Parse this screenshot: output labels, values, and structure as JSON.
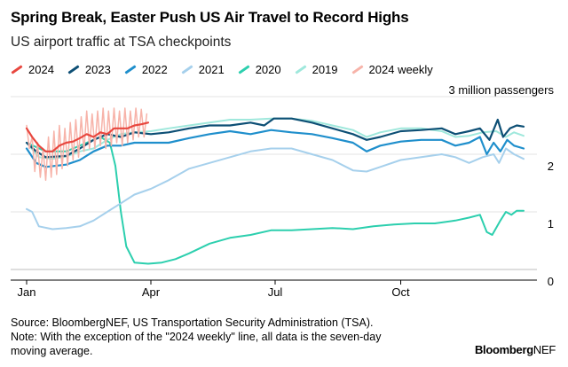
{
  "title": "Spring Break, Easter Push US Air Travel to Record Highs",
  "subtitle": "US airport traffic at TSA checkpoints",
  "source_line": "Source: BloombergNEF, US Transportation Security Administration (TSA).",
  "note_line1": "Note: With the exception of the \"2024 weekly\" line, all data is the seven-day",
  "note_line2": "moving average.",
  "brand_bold": "Bloomberg",
  "brand_light": "NEF",
  "chart_data": {
    "type": "line",
    "title": "Spring Break, Easter Push US Air Travel to Record Highs",
    "subtitle": "US airport traffic at TSA checkpoints",
    "yunit": "million passengers",
    "ylim": [
      0,
      3.1
    ],
    "yticks": [
      {
        "value": 0,
        "label": "0"
      },
      {
        "value": 1,
        "label": "1"
      },
      {
        "value": 2,
        "label": "2"
      },
      {
        "value": 3,
        "label": "3 million passengers"
      }
    ],
    "xlim": [
      1,
      365
    ],
    "xticks": [
      {
        "day": 1,
        "label": "Jan"
      },
      {
        "day": 92,
        "label": "Apr"
      },
      {
        "day": 183,
        "label": "Jul"
      },
      {
        "day": 275,
        "label": "Oct"
      }
    ],
    "grid": true,
    "legend_position": "top",
    "series": [
      {
        "name": "2019",
        "color": "#9fe8dc",
        "width": 2,
        "points": [
          [
            1,
            2.2
          ],
          [
            10,
            1.95
          ],
          [
            20,
            1.92
          ],
          [
            30,
            1.96
          ],
          [
            40,
            2.05
          ],
          [
            50,
            2.1
          ],
          [
            60,
            2.25
          ],
          [
            70,
            2.35
          ],
          [
            80,
            2.38
          ],
          [
            92,
            2.4
          ],
          [
            105,
            2.45
          ],
          [
            120,
            2.5
          ],
          [
            135,
            2.55
          ],
          [
            150,
            2.6
          ],
          [
            165,
            2.6
          ],
          [
            180,
            2.62
          ],
          [
            195,
            2.62
          ],
          [
            210,
            2.58
          ],
          [
            225,
            2.5
          ],
          [
            240,
            2.42
          ],
          [
            250,
            2.3
          ],
          [
            260,
            2.38
          ],
          [
            275,
            2.45
          ],
          [
            290,
            2.45
          ],
          [
            305,
            2.4
          ],
          [
            315,
            2.3
          ],
          [
            325,
            2.32
          ],
          [
            335,
            2.38
          ],
          [
            345,
            2.4
          ],
          [
            352,
            2.3
          ],
          [
            358,
            2.38
          ],
          [
            365,
            2.32
          ]
        ]
      },
      {
        "name": "2020",
        "color": "#2ccfae",
        "width": 2,
        "points": [
          [
            1,
            2.2
          ],
          [
            15,
            2.05
          ],
          [
            30,
            2.05
          ],
          [
            45,
            2.2
          ],
          [
            55,
            2.3
          ],
          [
            62,
            2.2
          ],
          [
            66,
            1.8
          ],
          [
            70,
            1.0
          ],
          [
            74,
            0.4
          ],
          [
            80,
            0.12
          ],
          [
            90,
            0.1
          ],
          [
            100,
            0.12
          ],
          [
            110,
            0.18
          ],
          [
            120,
            0.28
          ],
          [
            135,
            0.45
          ],
          [
            150,
            0.55
          ],
          [
            165,
            0.6
          ],
          [
            180,
            0.68
          ],
          [
            195,
            0.68
          ],
          [
            210,
            0.7
          ],
          [
            225,
            0.72
          ],
          [
            240,
            0.7
          ],
          [
            255,
            0.75
          ],
          [
            270,
            0.78
          ],
          [
            285,
            0.8
          ],
          [
            300,
            0.8
          ],
          [
            315,
            0.85
          ],
          [
            325,
            0.9
          ],
          [
            333,
            0.95
          ],
          [
            338,
            0.65
          ],
          [
            342,
            0.6
          ],
          [
            348,
            0.85
          ],
          [
            352,
            1.0
          ],
          [
            356,
            0.95
          ],
          [
            360,
            1.02
          ],
          [
            365,
            1.02
          ]
        ]
      },
      {
        "name": "2021",
        "color": "#a6d0ec",
        "width": 2,
        "points": [
          [
            1,
            1.05
          ],
          [
            5,
            1.0
          ],
          [
            10,
            0.75
          ],
          [
            20,
            0.7
          ],
          [
            30,
            0.72
          ],
          [
            40,
            0.75
          ],
          [
            50,
            0.85
          ],
          [
            60,
            1.0
          ],
          [
            70,
            1.15
          ],
          [
            80,
            1.3
          ],
          [
            92,
            1.4
          ],
          [
            105,
            1.55
          ],
          [
            120,
            1.75
          ],
          [
            135,
            1.85
          ],
          [
            150,
            1.95
          ],
          [
            165,
            2.05
          ],
          [
            180,
            2.1
          ],
          [
            195,
            2.1
          ],
          [
            210,
            2.0
          ],
          [
            225,
            1.9
          ],
          [
            240,
            1.72
          ],
          [
            250,
            1.7
          ],
          [
            260,
            1.78
          ],
          [
            275,
            1.9
          ],
          [
            290,
            1.95
          ],
          [
            305,
            2.0
          ],
          [
            315,
            1.95
          ],
          [
            325,
            1.85
          ],
          [
            335,
            1.95
          ],
          [
            343,
            2.0
          ],
          [
            347,
            1.85
          ],
          [
            352,
            2.1
          ],
          [
            358,
            2.0
          ],
          [
            365,
            1.92
          ]
        ]
      },
      {
        "name": "2022",
        "color": "#1f8fcc",
        "width": 2.2,
        "points": [
          [
            1,
            2.1
          ],
          [
            8,
            1.85
          ],
          [
            15,
            1.78
          ],
          [
            30,
            1.82
          ],
          [
            40,
            1.9
          ],
          [
            50,
            2.05
          ],
          [
            60,
            2.15
          ],
          [
            70,
            2.15
          ],
          [
            80,
            2.2
          ],
          [
            92,
            2.2
          ],
          [
            105,
            2.2
          ],
          [
            120,
            2.28
          ],
          [
            135,
            2.35
          ],
          [
            150,
            2.4
          ],
          [
            165,
            2.35
          ],
          [
            180,
            2.42
          ],
          [
            195,
            2.38
          ],
          [
            210,
            2.35
          ],
          [
            225,
            2.28
          ],
          [
            240,
            2.2
          ],
          [
            250,
            2.05
          ],
          [
            260,
            2.15
          ],
          [
            275,
            2.22
          ],
          [
            290,
            2.25
          ],
          [
            305,
            2.25
          ],
          [
            315,
            2.15
          ],
          [
            325,
            2.2
          ],
          [
            333,
            2.3
          ],
          [
            338,
            2.0
          ],
          [
            343,
            2.2
          ],
          [
            348,
            2.05
          ],
          [
            353,
            2.25
          ],
          [
            358,
            2.15
          ],
          [
            365,
            2.1
          ]
        ]
      },
      {
        "name": "2023",
        "color": "#0d4f75",
        "width": 2.2,
        "points": [
          [
            1,
            2.2
          ],
          [
            8,
            2.05
          ],
          [
            15,
            1.95
          ],
          [
            30,
            1.97
          ],
          [
            40,
            2.1
          ],
          [
            50,
            2.25
          ],
          [
            60,
            2.35
          ],
          [
            70,
            2.3
          ],
          [
            80,
            2.38
          ],
          [
            92,
            2.35
          ],
          [
            105,
            2.38
          ],
          [
            120,
            2.45
          ],
          [
            135,
            2.5
          ],
          [
            150,
            2.5
          ],
          [
            165,
            2.55
          ],
          [
            175,
            2.5
          ],
          [
            182,
            2.62
          ],
          [
            195,
            2.62
          ],
          [
            210,
            2.55
          ],
          [
            225,
            2.45
          ],
          [
            240,
            2.35
          ],
          [
            250,
            2.25
          ],
          [
            260,
            2.3
          ],
          [
            275,
            2.4
          ],
          [
            290,
            2.42
          ],
          [
            305,
            2.45
          ],
          [
            315,
            2.35
          ],
          [
            325,
            2.4
          ],
          [
            333,
            2.45
          ],
          [
            340,
            2.25
          ],
          [
            346,
            2.6
          ],
          [
            350,
            2.3
          ],
          [
            355,
            2.45
          ],
          [
            360,
            2.5
          ],
          [
            365,
            2.48
          ]
        ]
      },
      {
        "name": "2024",
        "color": "#e8473f",
        "width": 2.2,
        "points": [
          [
            1,
            2.45
          ],
          [
            5,
            2.3
          ],
          [
            10,
            2.15
          ],
          [
            15,
            2.05
          ],
          [
            20,
            2.05
          ],
          [
            25,
            2.15
          ],
          [
            30,
            2.2
          ],
          [
            35,
            2.22
          ],
          [
            40,
            2.28
          ],
          [
            45,
            2.35
          ],
          [
            50,
            2.3
          ],
          [
            55,
            2.38
          ],
          [
            60,
            2.35
          ],
          [
            65,
            2.45
          ],
          [
            70,
            2.45
          ],
          [
            75,
            2.45
          ],
          [
            80,
            2.5
          ],
          [
            85,
            2.52
          ],
          [
            90,
            2.55
          ]
        ]
      },
      {
        "name": "2024 weekly",
        "color": "#f7b3a9",
        "width": 1.5,
        "points": [
          [
            1,
            2.5
          ],
          [
            3,
            2.1
          ],
          [
            5,
            2.3
          ],
          [
            7,
            1.7
          ],
          [
            9,
            2.2
          ],
          [
            11,
            1.6
          ],
          [
            13,
            2.1
          ],
          [
            15,
            1.55
          ],
          [
            17,
            2.3
          ],
          [
            19,
            1.6
          ],
          [
            21,
            2.4
          ],
          [
            23,
            1.65
          ],
          [
            25,
            2.5
          ],
          [
            27,
            1.75
          ],
          [
            29,
            2.45
          ],
          [
            31,
            1.8
          ],
          [
            33,
            2.55
          ],
          [
            35,
            1.9
          ],
          [
            37,
            2.6
          ],
          [
            39,
            1.95
          ],
          [
            41,
            2.65
          ],
          [
            43,
            2.05
          ],
          [
            45,
            2.75
          ],
          [
            47,
            2.1
          ],
          [
            49,
            2.7
          ],
          [
            51,
            2.1
          ],
          [
            53,
            2.75
          ],
          [
            55,
            2.15
          ],
          [
            57,
            2.8
          ],
          [
            59,
            2.1
          ],
          [
            61,
            2.75
          ],
          [
            63,
            2.15
          ],
          [
            65,
            2.8
          ],
          [
            67,
            2.2
          ],
          [
            69,
            2.75
          ],
          [
            71,
            2.15
          ],
          [
            73,
            2.8
          ],
          [
            75,
            2.2
          ],
          [
            77,
            2.75
          ],
          [
            79,
            2.25
          ],
          [
            81,
            2.8
          ],
          [
            83,
            2.3
          ],
          [
            85,
            2.78
          ],
          [
            87,
            2.3
          ],
          [
            89,
            2.7
          ]
        ]
      }
    ]
  }
}
